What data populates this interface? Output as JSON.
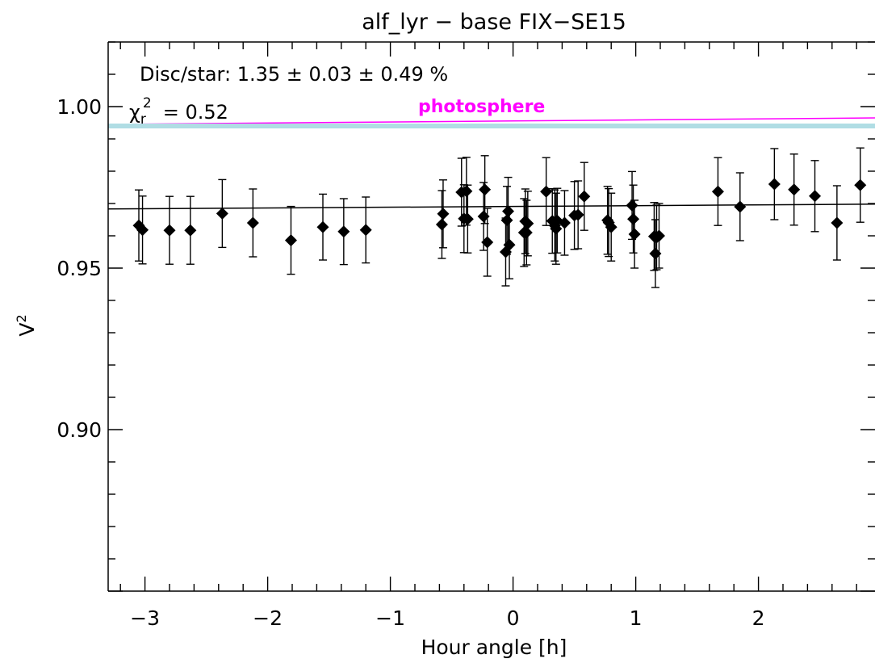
{
  "chart_data": {
    "type": "scatter",
    "title": "alf_lyr − base FIX−SE15",
    "xlabel": "Hour angle [h]",
    "ylabel": "V",
    "ylabel_superscript": "2",
    "xlim": [
      -3.3,
      2.95
    ],
    "ylim": [
      0.85,
      1.02
    ],
    "x_ticks": [
      -3,
      -2,
      -1,
      0,
      1,
      2
    ],
    "x_tick_labels": [
      "−3",
      "−2",
      "−1",
      "0",
      "1",
      "2"
    ],
    "y_ticks": [
      0.9,
      0.95,
      1.0
    ],
    "y_tick_labels": [
      "0.90",
      "0.95",
      "1.00"
    ],
    "grid": false,
    "annotations": {
      "disc_star": "Disc/star:  1.35 ± 0.03 ± 0.49 %",
      "chi_symbol": "χ",
      "chi_sub": "r",
      "chi_sup": "2",
      "chi_value": "=  0.52",
      "photosphere_label": "photosphere"
    },
    "series": [
      {
        "type": "errorbar",
        "marker": "diamond",
        "color": "#000000",
        "points": [
          {
            "x": -3.05,
            "y": 0.9632,
            "err": 0.011
          },
          {
            "x": -3.02,
            "y": 0.9618,
            "err": 0.0105
          },
          {
            "x": -2.8,
            "y": 0.9617,
            "err": 0.0105
          },
          {
            "x": -2.63,
            "y": 0.9617,
            "err": 0.0105
          },
          {
            "x": -2.37,
            "y": 0.9669,
            "err": 0.0105
          },
          {
            "x": -2.12,
            "y": 0.964,
            "err": 0.0105
          },
          {
            "x": -1.81,
            "y": 0.9586,
            "err": 0.0105
          },
          {
            "x": -1.55,
            "y": 0.9627,
            "err": 0.0102
          },
          {
            "x": -1.38,
            "y": 0.9613,
            "err": 0.0102
          },
          {
            "x": -1.2,
            "y": 0.9618,
            "err": 0.0102
          },
          {
            "x": -0.58,
            "y": 0.9635,
            "err": 0.0105
          },
          {
            "x": -0.57,
            "y": 0.9668,
            "err": 0.0105
          },
          {
            "x": -0.42,
            "y": 0.9735,
            "err": 0.0105
          },
          {
            "x": -0.4,
            "y": 0.9653,
            "err": 0.0105
          },
          {
            "x": -0.38,
            "y": 0.9738,
            "err": 0.0105
          },
          {
            "x": -0.37,
            "y": 0.9652,
            "err": 0.0105
          },
          {
            "x": -0.24,
            "y": 0.966,
            "err": 0.0105
          },
          {
            "x": -0.23,
            "y": 0.9743,
            "err": 0.0105
          },
          {
            "x": -0.21,
            "y": 0.958,
            "err": 0.0105
          },
          {
            "x": -0.06,
            "y": 0.955,
            "err": 0.0105
          },
          {
            "x": -0.05,
            "y": 0.9648,
            "err": 0.0105
          },
          {
            "x": -0.04,
            "y": 0.9676,
            "err": 0.0105
          },
          {
            "x": -0.03,
            "y": 0.9572,
            "err": 0.0105
          },
          {
            "x": 0.09,
            "y": 0.961,
            "err": 0.0105
          },
          {
            "x": 0.1,
            "y": 0.9645,
            "err": 0.01
          },
          {
            "x": 0.11,
            "y": 0.961,
            "err": 0.01
          },
          {
            "x": 0.12,
            "y": 0.9638,
            "err": 0.01
          },
          {
            "x": 0.27,
            "y": 0.9737,
            "err": 0.0105
          },
          {
            "x": 0.32,
            "y": 0.9646,
            "err": 0.01
          },
          {
            "x": 0.34,
            "y": 0.9632,
            "err": 0.011
          },
          {
            "x": 0.35,
            "y": 0.9622,
            "err": 0.011
          },
          {
            "x": 0.36,
            "y": 0.9647,
            "err": 0.01
          },
          {
            "x": 0.42,
            "y": 0.964,
            "err": 0.01
          },
          {
            "x": 0.5,
            "y": 0.9663,
            "err": 0.0105
          },
          {
            "x": 0.53,
            "y": 0.9665,
            "err": 0.0105
          },
          {
            "x": 0.58,
            "y": 0.9722,
            "err": 0.0105
          },
          {
            "x": 0.77,
            "y": 0.9648,
            "err": 0.0105
          },
          {
            "x": 0.78,
            "y": 0.9641,
            "err": 0.0105
          },
          {
            "x": 0.8,
            "y": 0.9627,
            "err": 0.0105
          },
          {
            "x": 0.97,
            "y": 0.9694,
            "err": 0.0105
          },
          {
            "x": 0.98,
            "y": 0.9652,
            "err": 0.0105
          },
          {
            "x": 0.99,
            "y": 0.9605,
            "err": 0.0105
          },
          {
            "x": 1.15,
            "y": 0.9598,
            "err": 0.0105
          },
          {
            "x": 1.16,
            "y": 0.9545,
            "err": 0.0105
          },
          {
            "x": 1.17,
            "y": 0.9595,
            "err": 0.01
          },
          {
            "x": 1.19,
            "y": 0.96,
            "err": 0.01
          },
          {
            "x": 1.67,
            "y": 0.9737,
            "err": 0.0105
          },
          {
            "x": 1.85,
            "y": 0.969,
            "err": 0.0105
          },
          {
            "x": 2.13,
            "y": 0.976,
            "err": 0.011
          },
          {
            "x": 2.29,
            "y": 0.9743,
            "err": 0.011
          },
          {
            "x": 2.46,
            "y": 0.9723,
            "err": 0.011
          },
          {
            "x": 2.64,
            "y": 0.964,
            "err": 0.0115
          },
          {
            "x": 2.83,
            "y": 0.9757,
            "err": 0.0115
          }
        ]
      },
      {
        "type": "line",
        "color": "#000000",
        "x": [
          -3.3,
          2.95
        ],
        "y": [
          0.9683,
          0.9698
        ]
      },
      {
        "type": "line",
        "color": "#ff00ff",
        "x": [
          -3.3,
          2.95
        ],
        "y": [
          0.9945,
          0.9965
        ]
      },
      {
        "type": "band",
        "color": "#b0dde4",
        "x": [
          -3.3,
          2.95
        ],
        "y": [
          0.994,
          0.994
        ]
      }
    ]
  }
}
